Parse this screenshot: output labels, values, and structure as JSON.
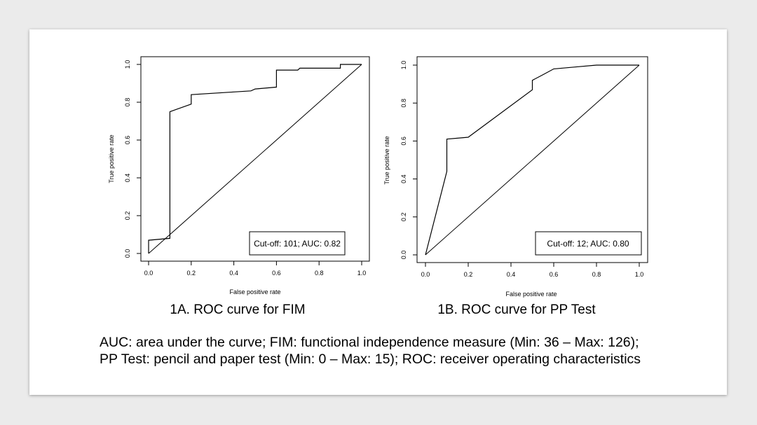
{
  "chart_data": [
    {
      "type": "line",
      "caption": "1A. ROC curve for FIM",
      "xlabel": "False positive rate",
      "ylabel": "True positive rate",
      "xlim": [
        0,
        1
      ],
      "ylim": [
        0,
        1
      ],
      "xticks": [
        "0.0",
        "0.2",
        "0.4",
        "0.6",
        "0.8",
        "1.0"
      ],
      "yticks": [
        "0.0",
        "0.2",
        "0.4",
        "0.6",
        "0.8",
        "1.0"
      ],
      "grid": false,
      "legend_text": "Cut-off: 101; AUC: 0.82",
      "legend_position": "bottom-right",
      "reference_line": [
        [
          0,
          0
        ],
        [
          1,
          1
        ]
      ],
      "roc_curve": [
        [
          0,
          0
        ],
        [
          0,
          0.07
        ],
        [
          0.1,
          0.08
        ],
        [
          0.1,
          0.75
        ],
        [
          0.2,
          0.79
        ],
        [
          0.2,
          0.84
        ],
        [
          0.48,
          0.86
        ],
        [
          0.5,
          0.87
        ],
        [
          0.6,
          0.88
        ],
        [
          0.6,
          0.97
        ],
        [
          0.7,
          0.97
        ],
        [
          0.71,
          0.98
        ],
        [
          0.9,
          0.98
        ],
        [
          0.9,
          1.0
        ],
        [
          1.0,
          1.0
        ]
      ]
    },
    {
      "type": "line",
      "caption": "1B. ROC curve for PP Test",
      "xlabel": "False positive rate",
      "ylabel": "True positive rate",
      "xlim": [
        0,
        1
      ],
      "ylim": [
        0,
        1
      ],
      "xticks": [
        "0.0",
        "0.2",
        "0.4",
        "0.6",
        "0.8",
        "1.0"
      ],
      "yticks": [
        "0.0",
        "0.2",
        "0.4",
        "0.6",
        "0.8",
        "1.0"
      ],
      "grid": false,
      "legend_text": "Cut-off: 12; AUC: 0.80",
      "legend_position": "bottom-right",
      "reference_line": [
        [
          0,
          0
        ],
        [
          1,
          1
        ]
      ],
      "roc_curve": [
        [
          0,
          0
        ],
        [
          0.1,
          0.44
        ],
        [
          0.1,
          0.61
        ],
        [
          0.2,
          0.62
        ],
        [
          0.5,
          0.87
        ],
        [
          0.5,
          0.92
        ],
        [
          0.55,
          0.95
        ],
        [
          0.6,
          0.98
        ],
        [
          0.7,
          0.99
        ],
        [
          0.8,
          1.0
        ],
        [
          1.0,
          1.0
        ]
      ]
    }
  ],
  "footnote": "AUC: area under the curve; FIM: functional independence measure (Min: 36 – Max: 126); PP Test: pencil and paper test (Min: 0 – Max: 15); ROC: receiver operating characteristics"
}
